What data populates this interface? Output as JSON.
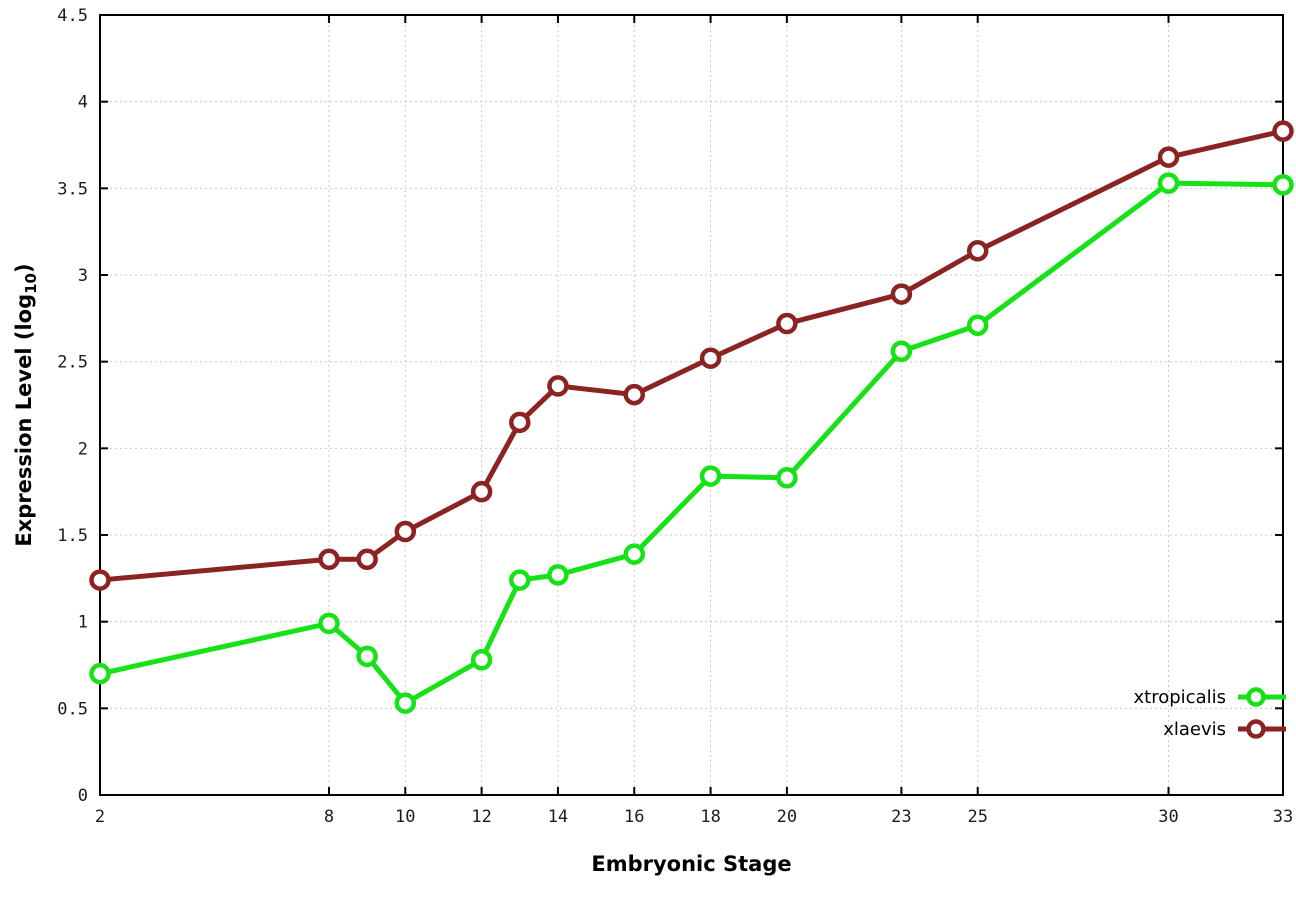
{
  "chart_data": {
    "type": "line",
    "title": "",
    "xlabel": "Embryonic Stage",
    "ylabel": {
      "text": "Expression Level (log",
      "sub": "10",
      "suffix": ")"
    },
    "xlim": [
      2,
      33
    ],
    "ylim": [
      0,
      4.5
    ],
    "x_ticks": [
      2,
      8,
      10,
      12,
      14,
      16,
      18,
      20,
      23,
      25,
      30,
      33
    ],
    "y_tick_step": 0.5,
    "grid": true,
    "legend_position": "bottom-right",
    "background": "#ffffff",
    "border_color": "#000000",
    "grid_color": "#c9c9c9",
    "tick_label_color": "#1c1c1c",
    "x": [
      2,
      8,
      9,
      10,
      12,
      13,
      14,
      16,
      18,
      20,
      23,
      25,
      30,
      33
    ],
    "series": [
      {
        "name": "xtropicalis",
        "color": "#17e117",
        "values": [
          0.7,
          0.99,
          0.8,
          0.53,
          0.78,
          1.24,
          1.27,
          1.39,
          1.84,
          1.83,
          2.56,
          2.71,
          3.53,
          3.52
        ]
      },
      {
        "name": "xlaevis",
        "color": "#8b2323",
        "values": [
          1.24,
          1.36,
          1.36,
          1.52,
          1.75,
          2.15,
          2.36,
          2.31,
          2.52,
          2.72,
          2.89,
          3.14,
          3.68,
          3.83
        ]
      }
    ]
  }
}
